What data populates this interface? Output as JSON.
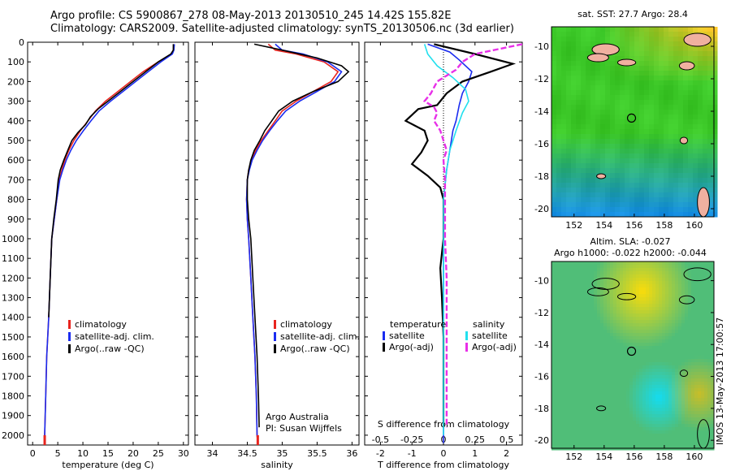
{
  "title_line1": "Argo profile: CS 5900867_278 08-May-2013 20130510_245 14.42S 155.82E",
  "title_line2": "Climatology: CARS2009. Satellite-adjusted climatology: synTS_20130506.nc (3d earlier)",
  "side_stamp": "IMOS 13-May-2013 17:00:57",
  "credit_line1": "Argo Australia",
  "credit_line2": "PI: Susan Wijffels",
  "colors": {
    "climatology": "#e8241e",
    "satellite": "#1a2cf0",
    "argo": "#000000",
    "sat_salinity": "#22e0ee",
    "argo_salinity": "#e830e8"
  },
  "chart_data": [
    {
      "type": "line",
      "panel": "temperature",
      "xlabel": "temperature (deg C)",
      "ylim": [
        0,
        2050
      ],
      "xlim": [
        -1,
        31
      ],
      "xticks": [
        0,
        5,
        10,
        15,
        20,
        25,
        30
      ],
      "yticks": [
        0,
        100,
        200,
        300,
        400,
        500,
        600,
        700,
        800,
        900,
        1000,
        1100,
        1200,
        1300,
        1400,
        1500,
        1600,
        1700,
        1800,
        1900,
        2000
      ],
      "legend": [
        "climatology",
        "satellite-adj. clim.",
        "Argo(..raw -QC)"
      ],
      "legend_placement": "lower-center",
      "series": [
        {
          "name": "climatology",
          "color": "#e8241e",
          "points": [
            [
              28.1,
              10
            ],
            [
              28.0,
              40
            ],
            [
              27.6,
              60
            ],
            [
              25.0,
              100
            ],
            [
              22.0,
              150
            ],
            [
              19.5,
              200
            ],
            [
              17.0,
              250
            ],
            [
              14.5,
              300
            ],
            [
              12.5,
              350
            ],
            [
              11.0,
              400
            ],
            [
              9.5,
              450
            ],
            [
              8.2,
              500
            ],
            [
              7.2,
              550
            ],
            [
              6.4,
              600
            ],
            [
              5.8,
              650
            ],
            [
              5.3,
              700
            ],
            [
              4.8,
              800
            ],
            [
              4.3,
              900
            ],
            [
              3.8,
              1000
            ],
            [
              3.5,
              1200
            ],
            [
              3.2,
              1400
            ],
            [
              2.8,
              1600
            ],
            [
              2.6,
              1800
            ],
            [
              2.4,
              2000
            ],
            [
              2.4,
              2040
            ]
          ]
        },
        {
          "name": "satellite-adj. clim.",
          "color": "#1a2cf0",
          "points": [
            [
              28.2,
              10
            ],
            [
              28.1,
              40
            ],
            [
              27.8,
              60
            ],
            [
              25.5,
              100
            ],
            [
              23.0,
              150
            ],
            [
              20.5,
              200
            ],
            [
              18.0,
              250
            ],
            [
              15.5,
              300
            ],
            [
              13.2,
              350
            ],
            [
              11.6,
              400
            ],
            [
              10.1,
              450
            ],
            [
              8.7,
              500
            ],
            [
              7.6,
              550
            ],
            [
              6.7,
              600
            ],
            [
              6.0,
              650
            ],
            [
              5.4,
              700
            ],
            [
              4.8,
              800
            ],
            [
              4.3,
              900
            ],
            [
              3.8,
              1000
            ],
            [
              3.5,
              1200
            ],
            [
              3.2,
              1400
            ],
            [
              2.8,
              1600
            ],
            [
              2.6,
              1800
            ],
            [
              2.4,
              2000
            ],
            [
              2.4,
              2040
            ]
          ]
        },
        {
          "name": "Argo(..raw -QC)",
          "color": "#000000",
          "points": [
            [
              28.0,
              10
            ],
            [
              28.0,
              40
            ],
            [
              27.5,
              60
            ],
            [
              25.0,
              100
            ],
            [
              22.5,
              150
            ],
            [
              20.0,
              200
            ],
            [
              17.5,
              250
            ],
            [
              15.0,
              300
            ],
            [
              13.0,
              340
            ],
            [
              11.5,
              380
            ],
            [
              10.5,
              420
            ],
            [
              9.0,
              460
            ],
            [
              7.8,
              500
            ],
            [
              7.0,
              550
            ],
            [
              6.2,
              600
            ],
            [
              5.5,
              650
            ],
            [
              5.1,
              700
            ],
            [
              4.7,
              800
            ],
            [
              4.2,
              900
            ],
            [
              3.8,
              1000
            ],
            [
              3.5,
              1200
            ],
            [
              3.2,
              1400
            ]
          ]
        }
      ]
    },
    {
      "type": "line",
      "panel": "salinity",
      "xlabel": "salinity",
      "ylim": [
        0,
        2050
      ],
      "xlim": [
        33.75,
        36.1
      ],
      "xticks": [
        34,
        34.5,
        35,
        35.5,
        36
      ],
      "xtick_labels": [
        "34",
        "34.5",
        "35",
        "35.5",
        "36"
      ],
      "legend": [
        "climatology",
        "satellite-adj. clim.",
        "Argo(..raw -QC)"
      ],
      "legend_placement": "lower-right",
      "series": [
        {
          "name": "climatology",
          "color": "#e8241e",
          "points": [
            [
              34.8,
              10
            ],
            [
              34.9,
              40
            ],
            [
              35.2,
              60
            ],
            [
              35.6,
              100
            ],
            [
              35.8,
              150
            ],
            [
              35.7,
              200
            ],
            [
              35.45,
              250
            ],
            [
              35.2,
              300
            ],
            [
              35.0,
              350
            ],
            [
              34.9,
              400
            ],
            [
              34.8,
              450
            ],
            [
              34.7,
              500
            ],
            [
              34.62,
              550
            ],
            [
              34.56,
              600
            ],
            [
              34.52,
              650
            ],
            [
              34.5,
              700
            ],
            [
              34.49,
              800
            ],
            [
              34.5,
              900
            ],
            [
              34.52,
              1000
            ],
            [
              34.55,
              1200
            ],
            [
              34.58,
              1400
            ],
            [
              34.61,
              1600
            ],
            [
              34.63,
              1800
            ],
            [
              34.64,
              2000
            ],
            [
              34.65,
              2040
            ]
          ]
        },
        {
          "name": "satellite-adj. clim.",
          "color": "#1a2cf0",
          "points": [
            [
              34.9,
              10
            ],
            [
              35.0,
              40
            ],
            [
              35.3,
              60
            ],
            [
              35.65,
              100
            ],
            [
              35.85,
              150
            ],
            [
              35.75,
              200
            ],
            [
              35.5,
              250
            ],
            [
              35.25,
              300
            ],
            [
              35.05,
              350
            ],
            [
              34.93,
              400
            ],
            [
              34.82,
              450
            ],
            [
              34.72,
              500
            ],
            [
              34.64,
              550
            ],
            [
              34.57,
              600
            ],
            [
              34.53,
              650
            ],
            [
              34.5,
              700
            ],
            [
              34.49,
              800
            ],
            [
              34.5,
              900
            ],
            [
              34.52,
              1000
            ],
            [
              34.55,
              1200
            ],
            [
              34.58,
              1400
            ],
            [
              34.61,
              1600
            ],
            [
              34.63,
              1800
            ],
            [
              34.64,
              2000
            ],
            [
              34.65,
              2040
            ]
          ]
        },
        {
          "name": "Argo(..raw -QC)",
          "color": "#000000",
          "points": [
            [
              34.6,
              10
            ],
            [
              35.0,
              40
            ],
            [
              35.5,
              80
            ],
            [
              35.85,
              120
            ],
            [
              35.95,
              150
            ],
            [
              35.8,
              200
            ],
            [
              35.45,
              250
            ],
            [
              35.15,
              300
            ],
            [
              34.95,
              350
            ],
            [
              34.85,
              400
            ],
            [
              34.75,
              450
            ],
            [
              34.68,
              500
            ],
            [
              34.6,
              550
            ],
            [
              34.55,
              600
            ],
            [
              34.52,
              650
            ],
            [
              34.5,
              700
            ],
            [
              34.5,
              800
            ],
            [
              34.52,
              900
            ],
            [
              34.55,
              1000
            ],
            [
              34.58,
              1200
            ],
            [
              34.61,
              1400
            ],
            [
              34.64,
              1600
            ],
            [
              34.66,
              1800
            ],
            [
              34.67,
              1960
            ]
          ]
        }
      ]
    },
    {
      "type": "line",
      "panel": "difference",
      "xlabel_top": "S difference from climatology",
      "xlabel": "T difference from climatology",
      "ylim": [
        0,
        2050
      ],
      "xlim": [
        -2.5,
        2.5
      ],
      "xticks": [
        -2,
        -1,
        0,
        1,
        2
      ],
      "top_ticks": [
        -0.5,
        -0.25,
        0,
        0.25,
        0.5
      ],
      "top_tick_labels": [
        "-0.5",
        "-0.25",
        "0",
        "0.25",
        "0.5"
      ],
      "legend_temperature_header": "temperature",
      "legend_salinity_header": "salinity",
      "legend": [
        "satellite",
        "Argo(-adj)",
        "satellite",
        "Argo(-adj)"
      ],
      "legend_placement": "lower-center",
      "series": [
        {
          "name": "satellite",
          "color": "#1a2cf0",
          "points": [
            [
              -0.5,
              10
            ],
            [
              0.2,
              50
            ],
            [
              0.5,
              90
            ],
            [
              0.9,
              150
            ],
            [
              0.8,
              200
            ],
            [
              0.6,
              260
            ],
            [
              0.5,
              320
            ],
            [
              0.4,
              400
            ],
            [
              0.3,
              450
            ],
            [
              0.2,
              550
            ],
            [
              0.1,
              650
            ],
            [
              0,
              800
            ],
            [
              0,
              1000
            ],
            [
              0,
              1500
            ],
            [
              0,
              2000
            ],
            [
              0,
              2040
            ]
          ]
        },
        {
          "name": "Argo(-adj)",
          "color": "#000000",
          "points": [
            [
              -0.3,
              10
            ],
            [
              1.0,
              60
            ],
            [
              2.2,
              110
            ],
            [
              1.5,
              150
            ],
            [
              0.6,
              200
            ],
            [
              0.1,
              260
            ],
            [
              -0.2,
              320
            ],
            [
              -0.8,
              340
            ],
            [
              -1.2,
              400
            ],
            [
              -0.6,
              450
            ],
            [
              -0.5,
              500
            ],
            [
              -0.7,
              560
            ],
            [
              -1.0,
              620
            ],
            [
              -0.5,
              680
            ],
            [
              -0.1,
              740
            ],
            [
              0,
              800
            ],
            [
              0,
              1000
            ],
            [
              -0.1,
              1150
            ],
            [
              -0.05,
              1300
            ],
            [
              0,
              1500
            ],
            [
              0,
              1700
            ],
            [
              0,
              1800
            ],
            [
              0,
              1960
            ]
          ]
        },
        {
          "name": "satellite",
          "color": "#22e0ee",
          "points": [
            [
              -0.6,
              10
            ],
            [
              -0.5,
              60
            ],
            [
              -0.2,
              120
            ],
            [
              0.3,
              180
            ],
            [
              0.7,
              240
            ],
            [
              0.8,
              300
            ],
            [
              0.6,
              360
            ],
            [
              0.4,
              450
            ],
            [
              0.2,
              550
            ],
            [
              0.1,
              650
            ],
            [
              0,
              800
            ],
            [
              0,
              1000
            ],
            [
              0,
              1500
            ],
            [
              0,
              2000
            ]
          ]
        },
        {
          "name": "Argo(-adj)",
          "color": "#e830e8",
          "points": [
            [
              2.5,
              10
            ],
            [
              1.0,
              60
            ],
            [
              0.6,
              100
            ],
            [
              0.4,
              140
            ],
            [
              -0.2,
              200
            ],
            [
              -0.4,
              260
            ],
            [
              -0.6,
              300
            ],
            [
              -0.3,
              330
            ],
            [
              -0.2,
              360
            ],
            [
              -0.3,
              400
            ],
            [
              -0.1,
              450
            ],
            [
              0,
              500
            ],
            [
              0.1,
              550
            ],
            [
              0,
              600
            ],
            [
              0.05,
              700
            ],
            [
              0.05,
              800
            ],
            [
              0.05,
              1000
            ],
            [
              0.1,
              1200
            ],
            [
              0.1,
              1400
            ],
            [
              0.1,
              1600
            ],
            [
              0.1,
              1800
            ],
            [
              0.1,
              1960
            ]
          ]
        }
      ]
    },
    {
      "type": "heatmap",
      "panel": "sst_map",
      "title": "sat. SST: 27.7  Argo: 28.4",
      "xlim": [
        150.5,
        161.3
      ],
      "ylim": [
        -20.5,
        -8.8
      ],
      "xticks": [
        152,
        154,
        156,
        158,
        160
      ],
      "yticks": [
        -10,
        -12,
        -14,
        -16,
        -18,
        -20
      ],
      "marker": {
        "lon": 155.82,
        "lat": -14.42
      }
    },
    {
      "type": "heatmap",
      "panel": "sla_map",
      "title": "Altim. SLA: -0.027",
      "subtitle": "Argo h1000: -0.022 h2000: -0.044",
      "xlim": [
        150.5,
        161.3
      ],
      "ylim": [
        -20.5,
        -8.8
      ],
      "xticks": [
        152,
        154,
        156,
        158,
        160
      ],
      "yticks": [
        -10,
        -12,
        -14,
        -16,
        -18,
        -20
      ],
      "marker": {
        "lon": 155.82,
        "lat": -14.42
      }
    }
  ]
}
